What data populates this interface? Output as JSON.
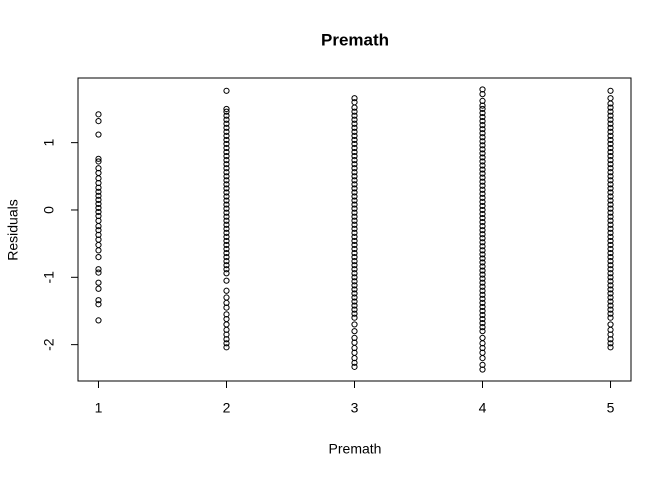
{
  "chart_data": {
    "type": "scatter",
    "title": "Premath",
    "x_label": "Premath",
    "y_label": "Residuals",
    "xlim": [
      0.84,
      5.16
    ],
    "ylim": [
      -2.54,
      1.96
    ],
    "xticks": [
      1,
      2,
      3,
      4,
      5
    ],
    "yticks": [
      -2,
      -1,
      0,
      1
    ],
    "color": "#000000",
    "columns": [
      {
        "x": 1,
        "values": [
          1.42,
          1.32,
          1.12,
          0.76,
          0.72,
          0.62,
          0.55,
          0.47,
          0.4,
          0.33,
          0.27,
          0.21,
          0.15,
          0.09,
          0.03,
          -0.03,
          -0.09,
          -0.16,
          -0.24,
          -0.3,
          -0.37,
          -0.44,
          -0.52,
          -0.6,
          -0.7,
          -0.88,
          -0.93,
          -1.08,
          -1.17,
          -1.34,
          -1.4,
          -1.64
        ]
      },
      {
        "x": 2,
        "values": [
          1.77,
          1.5,
          1.46,
          1.4,
          1.34,
          1.28,
          1.22,
          1.16,
          1.1,
          1.04,
          0.98,
          0.92,
          0.86,
          0.8,
          0.74,
          0.68,
          0.62,
          0.56,
          0.5,
          0.44,
          0.38,
          0.32,
          0.26,
          0.2,
          0.14,
          0.08,
          0.02,
          -0.04,
          -0.1,
          -0.16,
          -0.22,
          -0.28,
          -0.34,
          -0.4,
          -0.46,
          -0.52,
          -0.58,
          -0.64,
          -0.7,
          -0.76,
          -0.82,
          -0.88,
          -0.94,
          -1.05,
          -1.2,
          -1.3,
          -1.38,
          -1.45,
          -1.55,
          -1.62,
          -1.7,
          -1.78,
          -1.85,
          -1.92,
          -1.98,
          -2.04
        ]
      },
      {
        "x": 3,
        "values": [
          1.66,
          1.6,
          1.52,
          1.46,
          1.4,
          1.34,
          1.28,
          1.22,
          1.16,
          1.1,
          1.04,
          0.98,
          0.92,
          0.86,
          0.8,
          0.74,
          0.68,
          0.62,
          0.56,
          0.5,
          0.44,
          0.38,
          0.32,
          0.26,
          0.2,
          0.14,
          0.08,
          0.02,
          -0.04,
          -0.1,
          -0.16,
          -0.22,
          -0.28,
          -0.34,
          -0.4,
          -0.46,
          -0.52,
          -0.58,
          -0.64,
          -0.7,
          -0.76,
          -0.82,
          -0.88,
          -0.94,
          -1.0,
          -1.06,
          -1.12,
          -1.18,
          -1.24,
          -1.3,
          -1.36,
          -1.42,
          -1.48,
          -1.54,
          -1.6,
          -1.7,
          -1.8,
          -1.9,
          -1.97,
          -2.05,
          -2.12,
          -2.2,
          -2.27,
          -2.33
        ]
      },
      {
        "x": 4,
        "values": [
          1.79,
          1.72,
          1.62,
          1.55,
          1.5,
          1.44,
          1.38,
          1.32,
          1.26,
          1.2,
          1.14,
          1.08,
          1.02,
          0.96,
          0.9,
          0.84,
          0.78,
          0.72,
          0.66,
          0.6,
          0.54,
          0.48,
          0.42,
          0.36,
          0.3,
          0.24,
          0.18,
          0.12,
          0.06,
          0.0,
          -0.06,
          -0.12,
          -0.18,
          -0.24,
          -0.3,
          -0.36,
          -0.42,
          -0.48,
          -0.54,
          -0.6,
          -0.66,
          -0.72,
          -0.78,
          -0.84,
          -0.9,
          -0.96,
          -1.02,
          -1.08,
          -1.14,
          -1.2,
          -1.26,
          -1.32,
          -1.38,
          -1.44,
          -1.5,
          -1.56,
          -1.62,
          -1.68,
          -1.74,
          -1.8,
          -1.9,
          -1.98,
          -2.05,
          -2.12,
          -2.2,
          -2.3,
          -2.37
        ]
      },
      {
        "x": 5,
        "values": [
          1.77,
          1.66,
          1.58,
          1.52,
          1.46,
          1.4,
          1.34,
          1.28,
          1.22,
          1.16,
          1.1,
          1.04,
          0.98,
          0.92,
          0.86,
          0.8,
          0.74,
          0.68,
          0.62,
          0.56,
          0.5,
          0.44,
          0.38,
          0.32,
          0.26,
          0.2,
          0.14,
          0.08,
          0.02,
          -0.04,
          -0.1,
          -0.16,
          -0.22,
          -0.28,
          -0.34,
          -0.4,
          -0.46,
          -0.52,
          -0.58,
          -0.64,
          -0.7,
          -0.76,
          -0.82,
          -0.88,
          -0.94,
          -1.0,
          -1.06,
          -1.12,
          -1.18,
          -1.24,
          -1.3,
          -1.36,
          -1.42,
          -1.48,
          -1.54,
          -1.6,
          -1.7,
          -1.78,
          -1.85,
          -1.92,
          -1.98,
          -2.04
        ]
      }
    ]
  }
}
